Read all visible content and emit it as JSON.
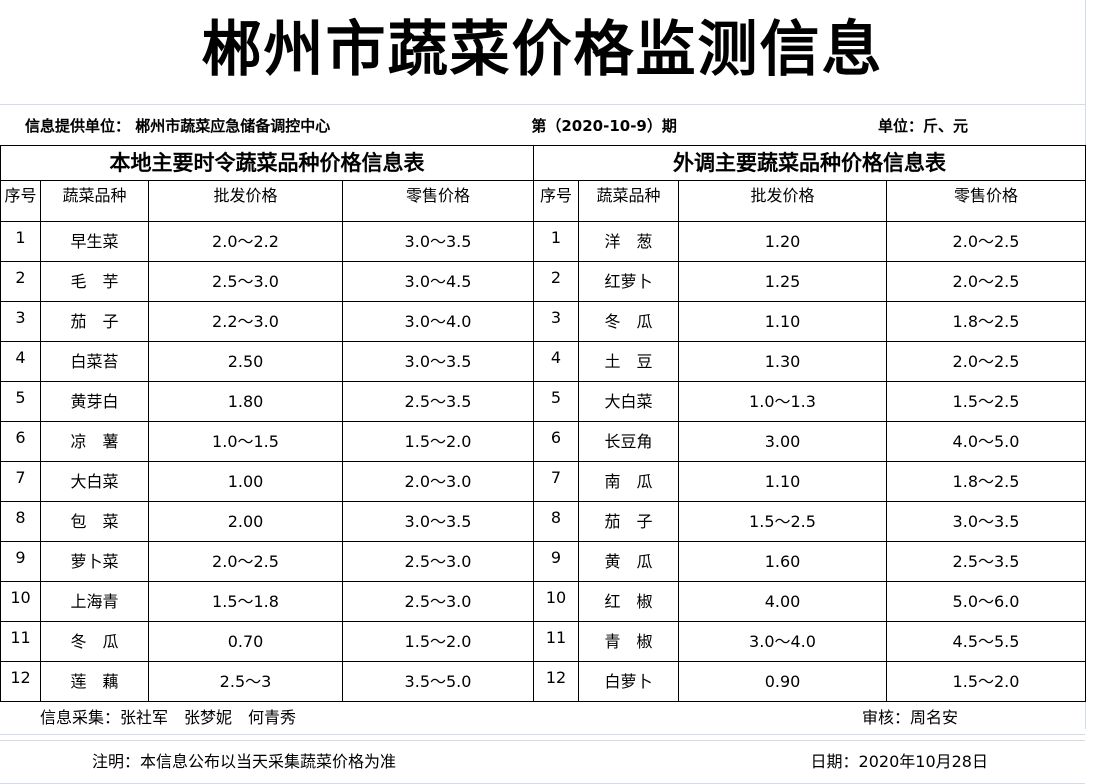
{
  "title": "郴州市蔬菜价格监测信息",
  "info": {
    "provider": "信息提供单位：  郴州市蔬菜应急储备调控中心",
    "issue": "第（2020-10-9）期",
    "unit": "单位：斤、元"
  },
  "local": {
    "title": "本地主要时令蔬菜品种价格信息表",
    "headers": [
      "序号",
      "蔬菜品种",
      "批发价格",
      "零售价格"
    ],
    "rows": [
      [
        "1",
        "早生菜",
        "2.0～2.2",
        "3.0～3.5"
      ],
      [
        "2",
        "毛　芋",
        "2.5～3.0",
        "3.0～4.5"
      ],
      [
        "3",
        "茄　子",
        "2.2～3.0",
        "3.0～4.0"
      ],
      [
        "4",
        "白菜苔",
        "2.50",
        "3.0～3.5"
      ],
      [
        "5",
        "黄芽白",
        "1.80",
        "2.5～3.5"
      ],
      [
        "6",
        "凉　薯",
        "1.0～1.5",
        "1.5～2.0"
      ],
      [
        "7",
        "大白菜",
        "1.00",
        "2.0～3.0"
      ],
      [
        "8",
        "包　菜",
        "2.00",
        "3.0～3.5"
      ],
      [
        "9",
        "萝卜菜",
        "2.0～2.5",
        "2.5～3.0"
      ],
      [
        "10",
        "上海青",
        "1.5～1.8",
        "2.5～3.0"
      ],
      [
        "11",
        "冬　瓜",
        "0.70",
        "1.5～2.0"
      ],
      [
        "12",
        "莲　藕",
        "2.5～3",
        "3.5～5.0"
      ]
    ]
  },
  "external": {
    "title": "外调主要蔬菜品种价格信息表",
    "headers": [
      "序号",
      "蔬菜品种",
      "批发价格",
      "零售价格"
    ],
    "rows": [
      [
        "1",
        "洋　葱",
        "1.20",
        "2.0～2.5"
      ],
      [
        "2",
        "红萝卜",
        "1.25",
        "2.0～2.5"
      ],
      [
        "3",
        "冬　瓜",
        "1.10",
        "1.8～2.5"
      ],
      [
        "4",
        "土　豆",
        "1.30",
        "2.0～2.5"
      ],
      [
        "5",
        "大白菜",
        "1.0～1.3",
        "1.5～2.5"
      ],
      [
        "6",
        "长豆角",
        "3.00",
        "4.0～5.0"
      ],
      [
        "7",
        "南　瓜",
        "1.10",
        "1.8～2.5"
      ],
      [
        "8",
        "茄　子",
        "1.5～2.5",
        "3.0～3.5"
      ],
      [
        "9",
        "黄　瓜",
        "1.60",
        "2.5～3.5"
      ],
      [
        "10",
        "红　椒",
        "4.00",
        "5.0～6.0"
      ],
      [
        "11",
        "青　椒",
        "3.0～4.0",
        "4.5～5.5"
      ],
      [
        "12",
        "白萝卜",
        "0.90",
        "1.5～2.0"
      ]
    ]
  },
  "footer": {
    "collectors": "信息采集：张社军　张梦妮　何青秀",
    "reviewer": "审核：周名安",
    "note": "注明：本信息公布以当天采集蔬菜价格为准",
    "date": "日期：2020年10月28日"
  }
}
